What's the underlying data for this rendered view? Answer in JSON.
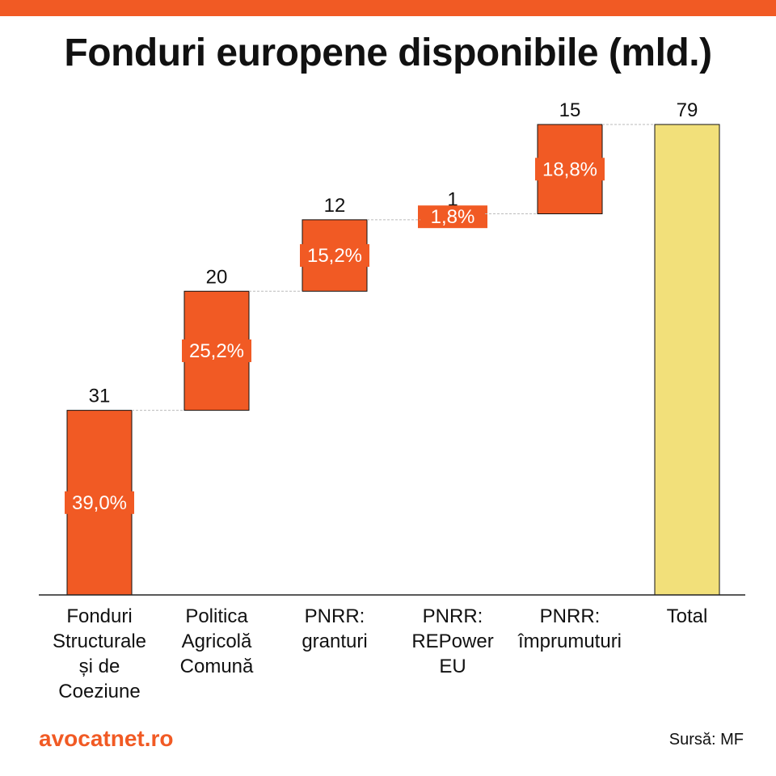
{
  "title": "Fonduri europene disponibile (mld.)",
  "brand": "avocatnet.ro",
  "source": "Sursă: MF",
  "colors": {
    "accent": "#f15a24",
    "total": "#f2e07a",
    "text": "#111111",
    "label_text": "#ffffff",
    "connector": "#bbbbbb",
    "axis": "#222222"
  },
  "chart_data": {
    "type": "bar",
    "subtype": "waterfall",
    "title": "Fonduri europene disponibile (mld.)",
    "categories": [
      [
        "Fonduri",
        "Structurale",
        "și de",
        "Coeziune"
      ],
      [
        "Politica",
        "Agricolă",
        "Comună"
      ],
      [
        "PNRR:",
        "granturi"
      ],
      [
        "PNRR:",
        "REPower",
        "EU"
      ],
      [
        "PNRR:",
        "împrumuturi"
      ],
      [
        "Total"
      ]
    ],
    "values": [
      31,
      20,
      12,
      1,
      15,
      79
    ],
    "value_labels": [
      "31",
      "20",
      "12",
      "1",
      "15",
      "79"
    ],
    "percent_labels": [
      "39,0%",
      "25,2%",
      "15,2%",
      "1,8%",
      "18,8%",
      ""
    ],
    "is_total": [
      false,
      false,
      false,
      false,
      false,
      true
    ],
    "ylim": [
      0,
      79
    ],
    "xlabel": "",
    "ylabel": "",
    "grid": false,
    "connectors": true
  }
}
